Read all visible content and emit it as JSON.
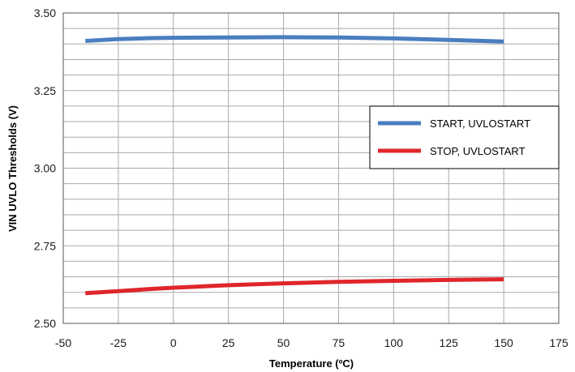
{
  "chart_data": {
    "type": "line",
    "xlabel": "Temperature (ºC)",
    "ylabel": "VIN UVLO Thresholds (V)",
    "xlim": [
      -50,
      175
    ],
    "ylim": [
      2.5,
      3.5
    ],
    "x_ticks": [
      "-50",
      "-25",
      "0",
      "25",
      "50",
      "75",
      "100",
      "125",
      "150",
      "175"
    ],
    "y_ticks": [
      "2.50",
      "2.75",
      "3.00",
      "3.25",
      "3.50"
    ],
    "grid": true,
    "legend_position": "right",
    "series": [
      {
        "name": "START, UVLOSTART",
        "color": "#4a7ebf",
        "x": [
          -40,
          -25,
          -10,
          0,
          25,
          50,
          75,
          100,
          125,
          150
        ],
        "y": [
          3.41,
          3.416,
          3.419,
          3.42,
          3.421,
          3.422,
          3.421,
          3.418,
          3.413,
          3.408
        ]
      },
      {
        "name": "STOP, UVLOSTART",
        "color": "#e0262b",
        "x": [
          -40,
          -25,
          -10,
          0,
          25,
          50,
          75,
          100,
          125,
          150
        ],
        "y": [
          2.597,
          2.604,
          2.611,
          2.615,
          2.623,
          2.629,
          2.634,
          2.637,
          2.64,
          2.642
        ]
      }
    ]
  }
}
